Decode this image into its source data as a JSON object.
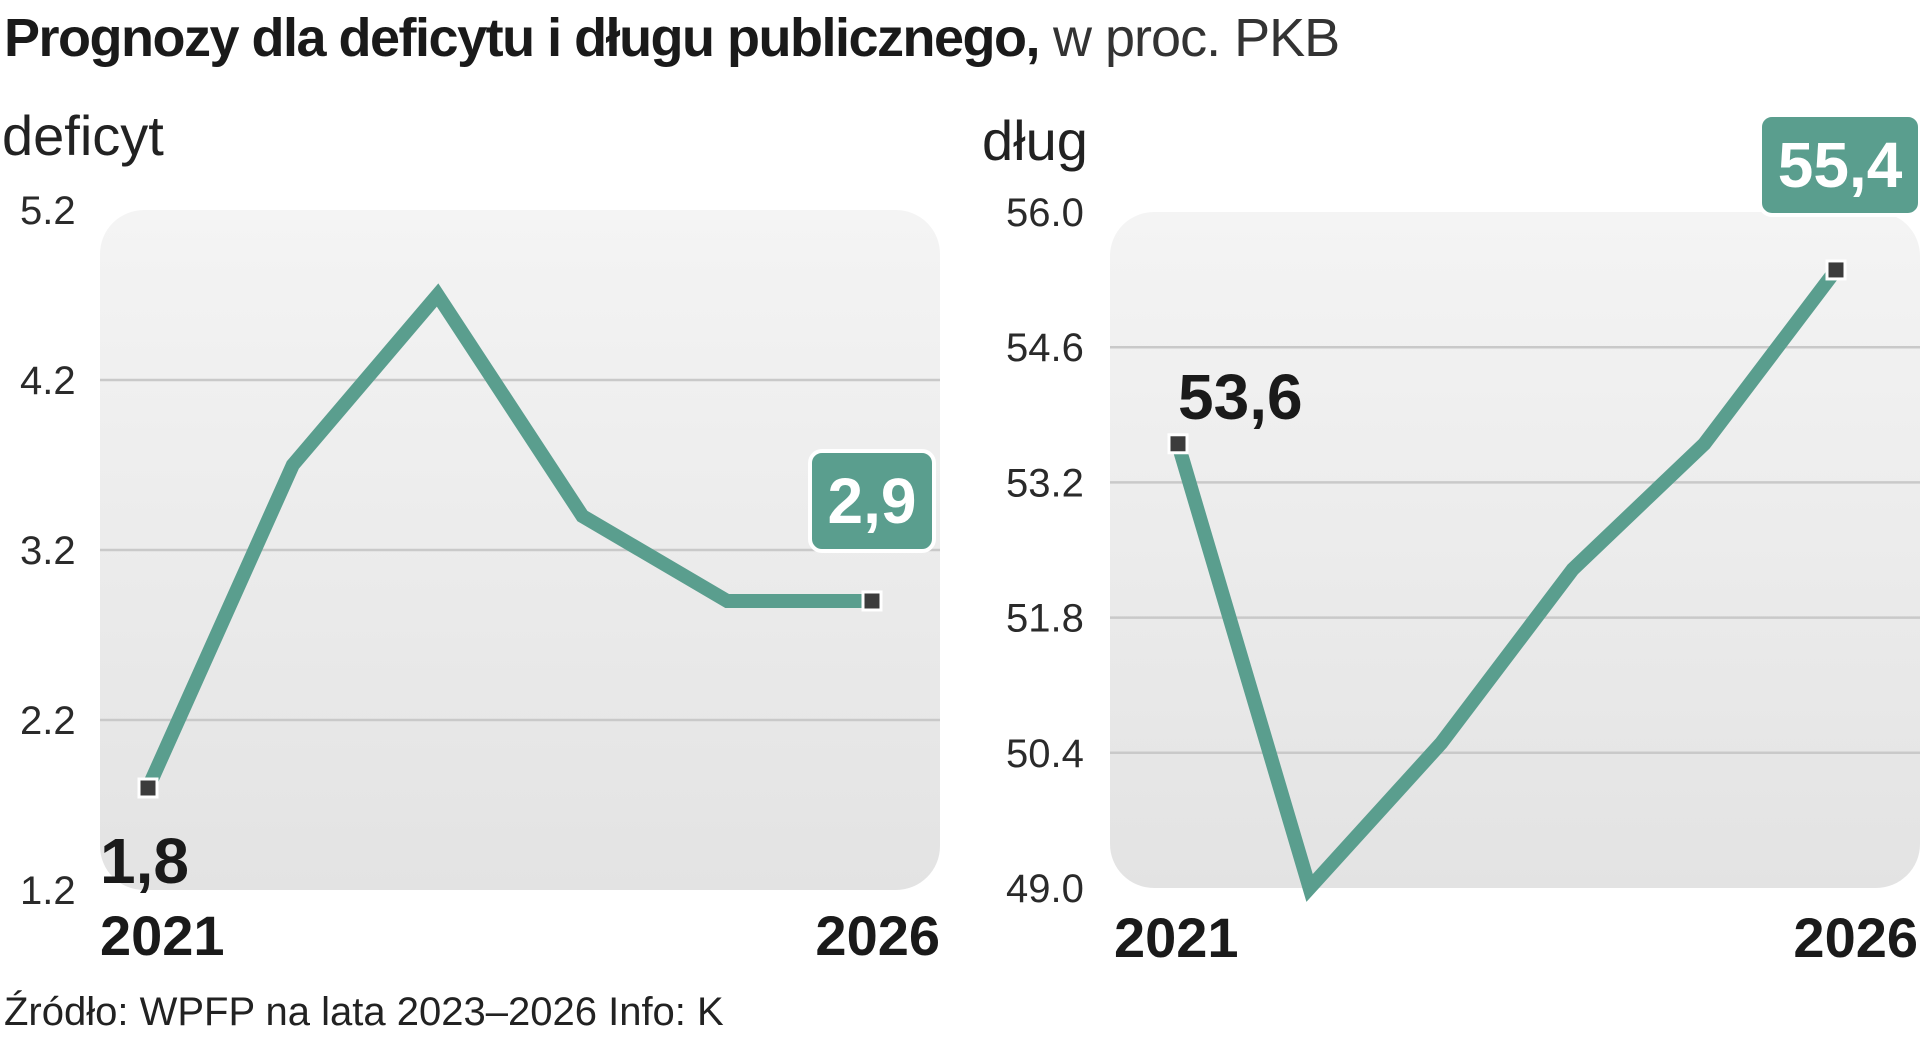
{
  "header": {
    "title_bold": "Prognozy dla deficytu i długu publicznego,",
    "title_light": " w proc. PKB"
  },
  "footer": {
    "source": "Źródło: WPFP na lata 2023–2026  Info: K"
  },
  "colors": {
    "series": "#5a9e8e",
    "marker": "#3c3c3c",
    "panel_top": "#f4f4f4",
    "panel_bottom": "#e3e3e3"
  },
  "chart_data": [
    {
      "type": "line",
      "ylabel": "deficyt",
      "ylim": [
        1.2,
        5.2
      ],
      "yticks": [
        "5.2",
        "4.2",
        "3.2",
        "2.2",
        "1.2"
      ],
      "ytick_values": [
        5.2,
        4.2,
        3.2,
        2.2,
        1.2
      ],
      "x": [
        2021,
        2022,
        2023,
        2024,
        2025,
        2026
      ],
      "xtick_labels": [
        "2021",
        "2026"
      ],
      "values": [
        1.8,
        3.7,
        4.7,
        3.4,
        2.9,
        2.9
      ],
      "grid": true,
      "labels": {
        "first": "1,8",
        "last": "2,9"
      }
    },
    {
      "type": "line",
      "ylabel": "dług",
      "ylim": [
        49.0,
        56.0
      ],
      "yticks": [
        "56.0",
        "54.6",
        "53.2",
        "51.8",
        "50.4",
        "49.0"
      ],
      "ytick_values": [
        56.0,
        54.6,
        53.2,
        51.8,
        50.4,
        49.0
      ],
      "x": [
        2021,
        2022,
        2023,
        2024,
        2025,
        2026
      ],
      "xtick_labels": [
        "2021",
        "2026"
      ],
      "values": [
        53.6,
        49.0,
        50.5,
        52.3,
        53.6,
        55.4
      ],
      "grid": true,
      "labels": {
        "first": "53,6",
        "last": "55,4"
      }
    }
  ]
}
